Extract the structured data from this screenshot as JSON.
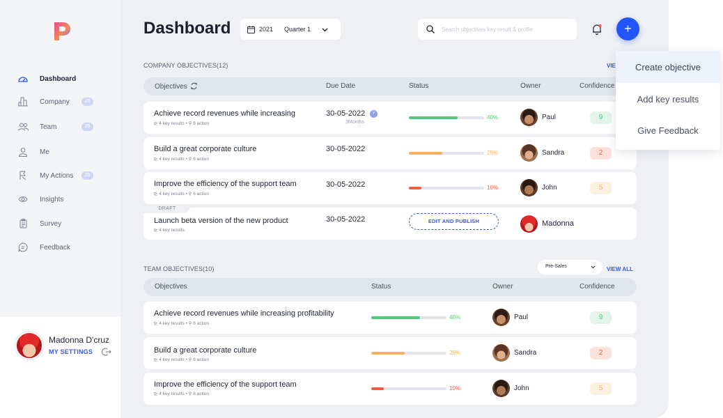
{
  "app": {
    "title": "Dashboard"
  },
  "colors": {
    "accent": "#2354f5",
    "green": "#52c97e",
    "orange": "#f4b25f",
    "red": "#f25c3f",
    "conf_green_bg": "#e3f5e9",
    "conf_red_bg": "#fde2dc",
    "conf_orange_bg": "#fdf0e0"
  },
  "sidebar": {
    "logo": "P",
    "items": [
      {
        "label": "Dashboard",
        "icon": "speedometer-icon",
        "count": "",
        "active": true
      },
      {
        "label": "Company",
        "icon": "building-icon",
        "count": "25"
      },
      {
        "label": "Team",
        "icon": "team-icon",
        "count": "25"
      },
      {
        "label": "Me",
        "icon": "person-icon",
        "count": ""
      },
      {
        "label": "My Actions",
        "icon": "actions-icon",
        "count": "25"
      },
      {
        "label": "Insights",
        "icon": "eye-icon",
        "count": ""
      },
      {
        "label": "Survey",
        "icon": "clipboard-icon",
        "count": ""
      },
      {
        "label": "Feedback",
        "icon": "chat-icon",
        "count": ""
      }
    ],
    "user": {
      "name": "Madonna D'cruz",
      "settings_label": "MY SETTINGS"
    }
  },
  "header": {
    "year": "2021",
    "quarter": "Quarter 1",
    "search_placeholder": "Search objectives key result & profile",
    "search_value": ""
  },
  "menu": {
    "items": [
      "Create objective",
      "Add key results",
      "Give Feedback"
    ]
  },
  "company": {
    "label": "COMPANY OBJECTIVES(12)",
    "view_all": "VIEW ALL",
    "view_all_visible": "VIE",
    "headers": {
      "objectives": "Objectives",
      "due": "Due Date",
      "status": "Status",
      "owner": "Owner",
      "confidence": "Confidence"
    },
    "rows": [
      {
        "title": "Achieve record revenues while increasing",
        "key_results": "4 key results",
        "actions": "6 action",
        "due": "30-05-2022",
        "due_badge": "Y",
        "due_sub": "3Months",
        "progress": "40%",
        "status_color": "green",
        "owner": "Paul",
        "confidence": "9",
        "conf_color": "green"
      },
      {
        "title": "Build a great corporate culture",
        "key_results": "4 key results",
        "actions": "6 action",
        "due": "30-05-2022",
        "progress": "25%",
        "status_color": "orange",
        "owner": "Sandra",
        "confidence": "2",
        "conf_color": "red"
      },
      {
        "title": "Improve the efficiency of the support team",
        "key_results": "4 key results",
        "actions": "6 action",
        "due": "30-05-2022",
        "progress": "10%",
        "status_color": "red",
        "owner": "John",
        "confidence": "5",
        "conf_color": "orange"
      },
      {
        "draft_label": "DRAFT",
        "title": "Launch beta version of the new product",
        "key_results": "4 key results",
        "due": "30-05-2022",
        "edit_label": "EDIT AND PUBLISH",
        "owner": "Madonna"
      }
    ]
  },
  "team": {
    "label": "TEAM OBJECTIVES(10)",
    "filter": "Pre-Sales",
    "view_all": "VIEW ALL",
    "headers": {
      "objectives": "Objectives",
      "status": "Status",
      "owner": "Owner",
      "confidence": "Confidence"
    },
    "rows": [
      {
        "title": "Achieve record revenues while increasing profitability",
        "key_results": "4 key results",
        "actions": "6 action",
        "progress": "40%",
        "owner": "Paul",
        "confidence": "9"
      },
      {
        "title": "Build a great corporate culture",
        "key_results": "4 key results",
        "actions": "6 action",
        "progress": "25%",
        "owner": "Sandra",
        "confidence": "2"
      },
      {
        "title": "Improve the efficiency of the support team",
        "key_results": "4 key results",
        "actions": "6 action",
        "progress": "10%",
        "owner": "John",
        "confidence": "5"
      }
    ]
  }
}
